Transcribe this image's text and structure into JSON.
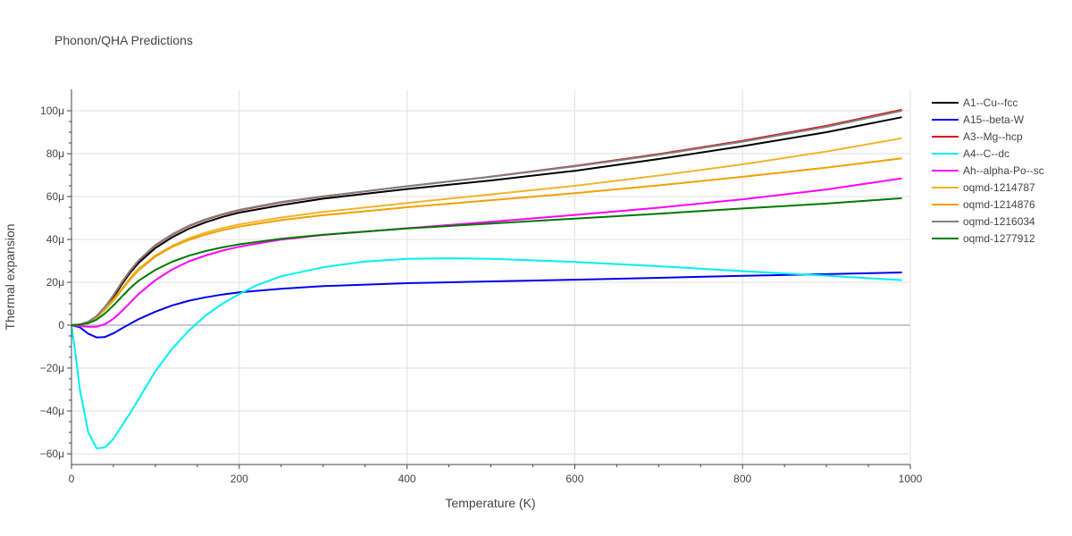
{
  "chart_data": {
    "type": "line",
    "title": "Phonon/QHA Predictions",
    "xlabel": "Temperature (K)",
    "ylabel": "Thermal expansion",
    "xlim": [
      0,
      1000
    ],
    "ylim": [
      -65,
      110
    ],
    "xticks": [
      0,
      200,
      400,
      600,
      800,
      1000
    ],
    "xtick_labels": [
      "0",
      "200",
      "400",
      "600",
      "800",
      "1000"
    ],
    "yticks": [
      -60,
      -40,
      -20,
      0,
      20,
      40,
      60,
      80,
      100
    ],
    "ytick_labels": [
      "−60μ",
      "−40μ",
      "−20μ",
      "0",
      "20μ",
      "40μ",
      "60μ",
      "80μ",
      "100μ"
    ],
    "legend_position": "right",
    "grid": true,
    "series": [
      {
        "name": "A1--Cu--fcc",
        "color": "#000000",
        "points": [
          [
            0,
            0
          ],
          [
            10,
            0.3
          ],
          [
            20,
            1.5
          ],
          [
            30,
            4
          ],
          [
            40,
            8
          ],
          [
            50,
            13
          ],
          [
            60,
            19
          ],
          [
            70,
            24.5
          ],
          [
            80,
            29
          ],
          [
            100,
            36
          ],
          [
            120,
            41
          ],
          [
            140,
            45
          ],
          [
            160,
            48
          ],
          [
            180,
            50.5
          ],
          [
            200,
            52.5
          ],
          [
            250,
            56
          ],
          [
            300,
            59
          ],
          [
            400,
            63.5
          ],
          [
            500,
            67.5
          ],
          [
            600,
            72
          ],
          [
            700,
            77.5
          ],
          [
            800,
            83.5
          ],
          [
            900,
            90
          ],
          [
            990,
            97
          ]
        ]
      },
      {
        "name": "A15--beta-W",
        "color": "#0000ee",
        "points": [
          [
            0,
            0
          ],
          [
            10,
            -1
          ],
          [
            20,
            -4
          ],
          [
            30,
            -5.7
          ],
          [
            40,
            -5.5
          ],
          [
            50,
            -3.8
          ],
          [
            60,
            -1.5
          ],
          [
            80,
            2.8
          ],
          [
            100,
            6.3
          ],
          [
            120,
            9.2
          ],
          [
            140,
            11.4
          ],
          [
            160,
            13
          ],
          [
            180,
            14.3
          ],
          [
            200,
            15.3
          ],
          [
            250,
            17
          ],
          [
            300,
            18.2
          ],
          [
            400,
            19.6
          ],
          [
            500,
            20.4
          ],
          [
            600,
            21.2
          ],
          [
            700,
            22.1
          ],
          [
            800,
            23
          ],
          [
            900,
            23.8
          ],
          [
            990,
            24.6
          ]
        ]
      },
      {
        "name": "A3--Mg--hcp",
        "color": "#dd1111",
        "points": [
          [
            0,
            0
          ],
          [
            10,
            0.3
          ],
          [
            20,
            1.6
          ],
          [
            30,
            4.2
          ],
          [
            40,
            8.5
          ],
          [
            50,
            13.8
          ],
          [
            60,
            19.8
          ],
          [
            70,
            25.3
          ],
          [
            80,
            30
          ],
          [
            100,
            37.2
          ],
          [
            120,
            42.2
          ],
          [
            140,
            46.2
          ],
          [
            160,
            49.2
          ],
          [
            180,
            51.6
          ],
          [
            200,
            53.6
          ],
          [
            250,
            57.3
          ],
          [
            300,
            60
          ],
          [
            400,
            64.8
          ],
          [
            500,
            69.3
          ],
          [
            600,
            74.3
          ],
          [
            700,
            79.8
          ],
          [
            800,
            86
          ],
          [
            900,
            93
          ],
          [
            990,
            100.5
          ]
        ]
      },
      {
        "name": "A4--C--dc",
        "color": "#00f0f0",
        "points": [
          [
            0,
            0
          ],
          [
            5,
            -14
          ],
          [
            10,
            -30
          ],
          [
            20,
            -50
          ],
          [
            30,
            -57.5
          ],
          [
            40,
            -57
          ],
          [
            50,
            -53
          ],
          [
            60,
            -47
          ],
          [
            70,
            -41
          ],
          [
            80,
            -34.5
          ],
          [
            100,
            -21.5
          ],
          [
            120,
            -11
          ],
          [
            140,
            -2.5
          ],
          [
            160,
            4.5
          ],
          [
            180,
            10
          ],
          [
            200,
            14.5
          ],
          [
            220,
            18.5
          ],
          [
            250,
            22.8
          ],
          [
            300,
            27
          ],
          [
            350,
            29.7
          ],
          [
            400,
            30.9
          ],
          [
            450,
            31.2
          ],
          [
            500,
            30.9
          ],
          [
            600,
            29.5
          ],
          [
            700,
            27.5
          ],
          [
            800,
            25.2
          ],
          [
            900,
            23.1
          ],
          [
            990,
            21
          ]
        ]
      },
      {
        "name": "Ah--alpha-Po--sc",
        "color": "#ff00ff",
        "points": [
          [
            0,
            0
          ],
          [
            10,
            -0.4
          ],
          [
            20,
            -0.7
          ],
          [
            30,
            -0.7
          ],
          [
            40,
            0.5
          ],
          [
            50,
            3
          ],
          [
            60,
            6.5
          ],
          [
            70,
            10.5
          ],
          [
            80,
            14.5
          ],
          [
            100,
            21
          ],
          [
            120,
            26
          ],
          [
            140,
            29.8
          ],
          [
            160,
            32.5
          ],
          [
            180,
            34.8
          ],
          [
            200,
            36.6
          ],
          [
            250,
            39.9
          ],
          [
            300,
            42.1
          ],
          [
            400,
            45.2
          ],
          [
            500,
            48.2
          ],
          [
            600,
            51.4
          ],
          [
            700,
            54.8
          ],
          [
            800,
            58.7
          ],
          [
            900,
            63.3
          ],
          [
            990,
            68.5
          ]
        ]
      },
      {
        "name": "oqmd-1214787",
        "color": "#f0b428",
        "points": [
          [
            0,
            0
          ],
          [
            10,
            0.3
          ],
          [
            20,
            1.4
          ],
          [
            30,
            3.8
          ],
          [
            40,
            7.5
          ],
          [
            50,
            12
          ],
          [
            60,
            17
          ],
          [
            70,
            22
          ],
          [
            80,
            26.3
          ],
          [
            100,
            32.5
          ],
          [
            120,
            37
          ],
          [
            140,
            40.5
          ],
          [
            160,
            43.2
          ],
          [
            180,
            45.3
          ],
          [
            200,
            47
          ],
          [
            250,
            50.2
          ],
          [
            300,
            52.8
          ],
          [
            400,
            57
          ],
          [
            500,
            61
          ],
          [
            600,
            65
          ],
          [
            700,
            69.8
          ],
          [
            800,
            75
          ],
          [
            900,
            81
          ],
          [
            990,
            87.2
          ]
        ]
      },
      {
        "name": "oqmd-1214876",
        "color": "#f0a000",
        "points": [
          [
            0,
            0
          ],
          [
            10,
            0.3
          ],
          [
            20,
            1.3
          ],
          [
            30,
            3.6
          ],
          [
            40,
            7.2
          ],
          [
            50,
            11.5
          ],
          [
            60,
            16.5
          ],
          [
            70,
            21.3
          ],
          [
            80,
            25.6
          ],
          [
            100,
            32
          ],
          [
            120,
            36.5
          ],
          [
            140,
            39.8
          ],
          [
            160,
            42.3
          ],
          [
            180,
            44.3
          ],
          [
            200,
            46
          ],
          [
            250,
            49
          ],
          [
            300,
            51.3
          ],
          [
            400,
            55
          ],
          [
            500,
            58.3
          ],
          [
            600,
            61.6
          ],
          [
            700,
            65.2
          ],
          [
            800,
            69.2
          ],
          [
            900,
            73.5
          ],
          [
            990,
            77.8
          ]
        ]
      },
      {
        "name": "oqmd-1216034",
        "color": "#808080",
        "points": [
          [
            0,
            0
          ],
          [
            10,
            0.3
          ],
          [
            20,
            1.6
          ],
          [
            30,
            4.3
          ],
          [
            40,
            8.6
          ],
          [
            50,
            14
          ],
          [
            60,
            20
          ],
          [
            70,
            25.5
          ],
          [
            80,
            30.2
          ],
          [
            100,
            37.4
          ],
          [
            120,
            42.4
          ],
          [
            140,
            46.4
          ],
          [
            160,
            49.4
          ],
          [
            180,
            51.8
          ],
          [
            200,
            53.8
          ],
          [
            250,
            57.5
          ],
          [
            300,
            60.1
          ],
          [
            400,
            64.8
          ],
          [
            500,
            69.2
          ],
          [
            600,
            74.1
          ],
          [
            700,
            79.5
          ],
          [
            800,
            85.6
          ],
          [
            900,
            92.5
          ],
          [
            990,
            100
          ]
        ]
      },
      {
        "name": "oqmd-1277912",
        "color": "#007a00",
        "points": [
          [
            0,
            0
          ],
          [
            10,
            0.2
          ],
          [
            20,
            0.9
          ],
          [
            30,
            2.6
          ],
          [
            40,
            5.5
          ],
          [
            50,
            9.2
          ],
          [
            60,
            13.3
          ],
          [
            70,
            17.3
          ],
          [
            80,
            20.7
          ],
          [
            100,
            25.8
          ],
          [
            120,
            29.6
          ],
          [
            140,
            32.4
          ],
          [
            160,
            34.6
          ],
          [
            180,
            36.3
          ],
          [
            200,
            37.7
          ],
          [
            250,
            40.3
          ],
          [
            300,
            42.2
          ],
          [
            400,
            45.1
          ],
          [
            500,
            47.4
          ],
          [
            600,
            49.7
          ],
          [
            700,
            52
          ],
          [
            800,
            54.4
          ],
          [
            900,
            56.7
          ],
          [
            990,
            59.2
          ]
        ]
      }
    ]
  }
}
